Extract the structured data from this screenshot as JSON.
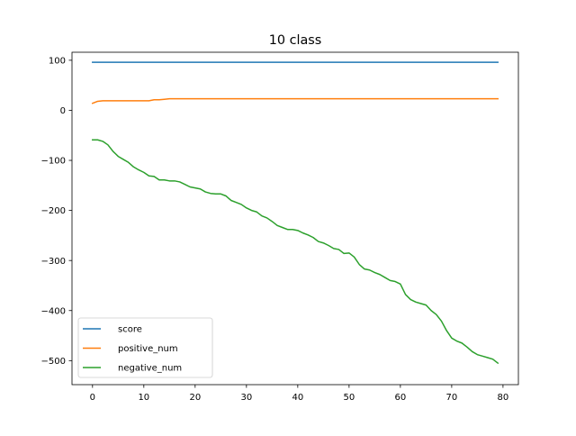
{
  "chart_data": {
    "type": "line",
    "title": "10 class",
    "xlabel": "",
    "ylabel": "",
    "xlim": [
      -4,
      83
    ],
    "ylim": [
      -548,
      116
    ],
    "xticks": [
      0,
      10,
      20,
      30,
      40,
      50,
      60,
      70,
      80
    ],
    "yticks": [
      100,
      0,
      -100,
      -200,
      -300,
      -400,
      -500
    ],
    "grid": false,
    "legend_position": "lower-left",
    "x": [
      0,
      1,
      2,
      3,
      4,
      5,
      6,
      7,
      8,
      9,
      10,
      11,
      12,
      13,
      14,
      15,
      16,
      17,
      18,
      19,
      20,
      21,
      22,
      23,
      24,
      25,
      26,
      27,
      28,
      29,
      30,
      31,
      32,
      33,
      34,
      35,
      36,
      37,
      38,
      39,
      40,
      41,
      42,
      43,
      44,
      45,
      46,
      47,
      48,
      49,
      50,
      51,
      52,
      53,
      54,
      55,
      56,
      57,
      58,
      59,
      60,
      61,
      62,
      63,
      64,
      65,
      66,
      67,
      68,
      69,
      70,
      71,
      72,
      73,
      74,
      75,
      76,
      77,
      78,
      79
    ],
    "series": [
      {
        "name": "score",
        "color": "#1f77b4",
        "values": [
          96,
          96,
          96,
          96,
          96,
          96,
          96,
          96,
          96,
          96,
          96,
          96,
          96,
          96,
          96,
          96,
          96,
          96,
          96,
          96,
          96,
          96,
          96,
          96,
          96,
          96,
          96,
          96,
          96,
          96,
          96,
          96,
          96,
          96,
          96,
          96,
          96,
          96,
          96,
          96,
          96,
          96,
          96,
          96,
          96,
          96,
          96,
          96,
          96,
          96,
          96,
          96,
          96,
          96,
          96,
          96,
          96,
          96,
          96,
          96,
          96,
          96,
          96,
          96,
          96,
          96,
          96,
          96,
          96,
          96,
          96,
          96,
          96,
          96,
          96,
          96,
          96,
          96,
          96,
          96
        ]
      },
      {
        "name": "positive_num",
        "color": "#ff7f0e",
        "values": [
          14,
          18,
          19,
          19,
          19,
          19,
          19,
          19,
          19,
          19,
          19,
          19,
          21,
          21,
          22,
          23,
          23,
          23,
          23,
          23,
          23,
          23,
          23,
          23,
          23,
          23,
          23,
          23,
          23,
          23,
          23,
          23,
          23,
          23,
          23,
          23,
          23,
          23,
          23,
          23,
          23,
          23,
          23,
          23,
          23,
          23,
          23,
          23,
          23,
          23,
          23,
          23,
          23,
          23,
          23,
          23,
          23,
          23,
          23,
          23,
          23,
          23,
          23,
          23,
          23,
          23,
          23,
          23,
          23,
          23,
          23,
          23,
          23,
          23,
          23,
          23,
          23,
          23,
          23,
          23
        ]
      },
      {
        "name": "negative_num",
        "color": "#2ca02c",
        "values": [
          -59,
          -59,
          -62,
          -69,
          -82,
          -92,
          -98,
          -104,
          -113,
          -119,
          -124,
          -131,
          -132,
          -139,
          -139,
          -141,
          -141,
          -143,
          -148,
          -153,
          -155,
          -157,
          -163,
          -166,
          -167,
          -167,
          -171,
          -180,
          -184,
          -188,
          -195,
          -200,
          -203,
          -211,
          -215,
          -222,
          -230,
          -234,
          -238,
          -238,
          -240,
          -245,
          -249,
          -254,
          -262,
          -265,
          -270,
          -276,
          -278,
          -286,
          -285,
          -293,
          -308,
          -317,
          -319,
          -324,
          -328,
          -334,
          -340,
          -342,
          -347,
          -368,
          -378,
          -383,
          -386,
          -389,
          -400,
          -408,
          -421,
          -440,
          -455,
          -461,
          -465,
          -473,
          -482,
          -488,
          -491,
          -494,
          -497,
          -505
        ]
      }
    ]
  }
}
